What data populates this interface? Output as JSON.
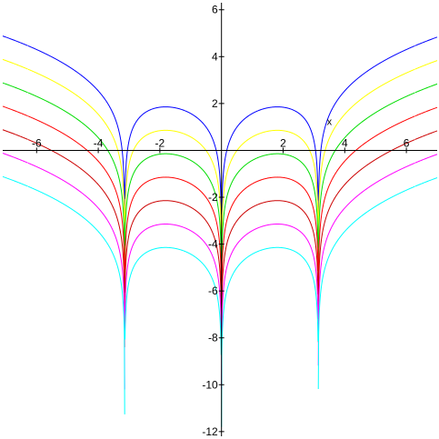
{
  "chart_data": {
    "type": "line",
    "xlabel": "x",
    "ylabel": "",
    "xlim": [
      -7.1,
      7.0
    ],
    "ylim": [
      -12.2,
      6.3
    ],
    "grid": false,
    "x_ticks": [
      -6,
      -4,
      -2,
      2,
      4,
      6
    ],
    "x_tick_labels": [
      "-6",
      "-4",
      "-2",
      "2",
      "4",
      "6"
    ],
    "y_ticks": [
      6,
      4,
      2,
      -2,
      -4,
      -6,
      -8,
      -10,
      -12
    ],
    "y_tick_labels": [
      "6",
      "4",
      "2",
      "-2",
      "-4",
      "-6",
      "-8",
      "-10",
      "-12"
    ],
    "series": [
      {
        "color": "#0000ff",
        "offset": 0,
        "min_value": -4.8
      },
      {
        "color": "#ffff00",
        "offset": -1,
        "min_value": -5.3
      },
      {
        "color": "#00dd00",
        "offset": -2,
        "min_value": -6.0
      },
      {
        "color": "#ff0000",
        "offset": -3,
        "min_value": -7.2
      },
      {
        "color": "#cc0000",
        "offset": -4,
        "min_value": -8.4
      },
      {
        "color": "#ff00ff",
        "offset": -5,
        "min_value": -10.2
      },
      {
        "color": "#00ffff",
        "offset": -6,
        "min_value": -11.8
      }
    ]
  }
}
